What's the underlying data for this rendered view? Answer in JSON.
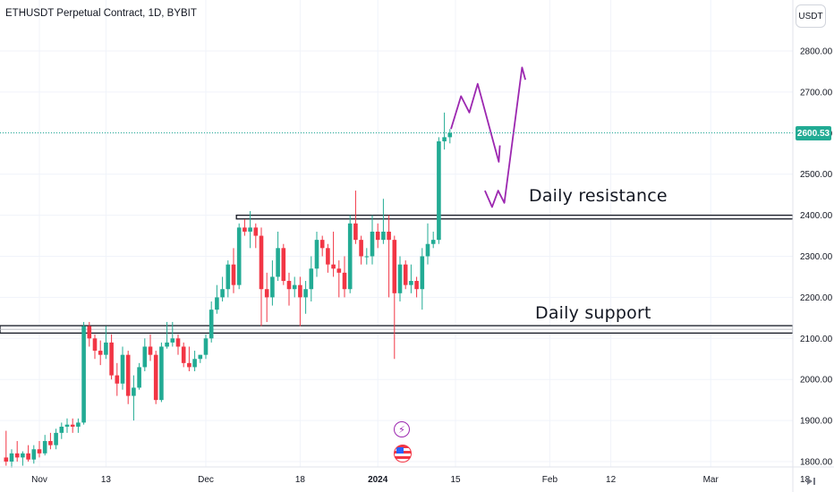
{
  "header": {
    "title": "ETHUSDT Perpetual Contract, 1D, BYBIT"
  },
  "price_scale": {
    "currency": "USDT",
    "last_price": "2600.53"
  },
  "colors": {
    "up": "#22ab94",
    "down": "#f23645",
    "drawing": "#9c27b0",
    "last_price_line": "#22ab94",
    "grid": "#f0f3fa"
  },
  "annotations": {
    "resistance_label": "Daily resistance",
    "support_label": "Daily support"
  },
  "events": [
    "lightning-icon",
    "us-flag-icon"
  ],
  "chart_data": {
    "type": "candlestick",
    "title": "ETHUSDT Perpetual Contract, 1D, BYBIT",
    "ylim": [
      1780,
      2870
    ],
    "y_ticks": [
      1800,
      1900,
      2000,
      2100,
      2200,
      2300,
      2400,
      2500,
      2600,
      2700,
      2800
    ],
    "y_tick_labels": [
      "1800.00",
      "1900.00",
      "2000.00",
      "2100.00",
      "2200.00",
      "2300.00",
      "2400.00",
      "2500.00",
      "2600.00",
      "2700.00",
      "2800.00"
    ],
    "x_tick_labels": [
      "Nov",
      "13",
      "Dec",
      "18",
      "2024",
      "15",
      "Feb",
      "12",
      "Mar",
      "18"
    ],
    "x_tick_days": [
      0,
      12,
      30,
      47,
      61,
      75,
      92,
      103,
      121,
      138
    ],
    "grid": true,
    "last_price": 2600.53,
    "start_date": "2023-11-01",
    "candles": [
      [
        -6,
        1810,
        1875,
        1790,
        1800
      ],
      [
        -5,
        1800,
        1830,
        1785,
        1820
      ],
      [
        -4,
        1820,
        1850,
        1800,
        1810
      ],
      [
        -3,
        1810,
        1825,
        1790,
        1820
      ],
      [
        -2,
        1820,
        1840,
        1800,
        1805
      ],
      [
        -1,
        1805,
        1840,
        1795,
        1830
      ],
      [
        0,
        1830,
        1850,
        1810,
        1820
      ],
      [
        1,
        1820,
        1865,
        1815,
        1850
      ],
      [
        2,
        1850,
        1870,
        1830,
        1840
      ],
      [
        3,
        1840,
        1880,
        1830,
        1870
      ],
      [
        4,
        1870,
        1895,
        1855,
        1885
      ],
      [
        5,
        1885,
        1905,
        1870,
        1890
      ],
      [
        6,
        1890,
        1905,
        1870,
        1885
      ],
      [
        7,
        1885,
        1905,
        1870,
        1895
      ],
      [
        8,
        1895,
        2140,
        1890,
        2130
      ],
      [
        9,
        2130,
        2140,
        2080,
        2100
      ],
      [
        10,
        2100,
        2110,
        2050,
        2070
      ],
      [
        11,
        2070,
        2095,
        2035,
        2060
      ],
      [
        12,
        2060,
        2130,
        2050,
        2090
      ],
      [
        13,
        2090,
        2110,
        2000,
        2010
      ],
      [
        14,
        2010,
        2040,
        1960,
        1990
      ],
      [
        15,
        1990,
        2080,
        1975,
        2060
      ],
      [
        16,
        2060,
        2070,
        1940,
        1960
      ],
      [
        17,
        1960,
        2010,
        1900,
        1980
      ],
      [
        18,
        1980,
        2040,
        1975,
        2030
      ],
      [
        19,
        2030,
        2100,
        2020,
        2080
      ],
      [
        20,
        2080,
        2110,
        2045,
        2060
      ],
      [
        21,
        2060,
        2070,
        1940,
        1950
      ],
      [
        22,
        1950,
        2090,
        1945,
        2080
      ],
      [
        23,
        2080,
        2140,
        2075,
        2090
      ],
      [
        24,
        2090,
        2140,
        2080,
        2100
      ],
      [
        25,
        2100,
        2110,
        2060,
        2080
      ],
      [
        26,
        2080,
        2090,
        2030,
        2040
      ],
      [
        27,
        2040,
        2080,
        2020,
        2030
      ],
      [
        28,
        2030,
        2070,
        2020,
        2050
      ],
      [
        29,
        2050,
        2060,
        2040,
        2060
      ],
      [
        30,
        2060,
        2110,
        2050,
        2100
      ],
      [
        31,
        2100,
        2190,
        2090,
        2170
      ],
      [
        32,
        2170,
        2230,
        2160,
        2200
      ],
      [
        33,
        2200,
        2250,
        2190,
        2220
      ],
      [
        34,
        2220,
        2290,
        2200,
        2280
      ],
      [
        35,
        2280,
        2320,
        2210,
        2230
      ],
      [
        36,
        2230,
        2380,
        2220,
        2370
      ],
      [
        37,
        2370,
        2390,
        2350,
        2360
      ],
      [
        38,
        2360,
        2410,
        2320,
        2370
      ],
      [
        39,
        2370,
        2380,
        2320,
        2350
      ],
      [
        40,
        2350,
        2370,
        2130,
        2220
      ],
      [
        41,
        2220,
        2260,
        2140,
        2200
      ],
      [
        42,
        2200,
        2290,
        2180,
        2250
      ],
      [
        43,
        2250,
        2360,
        2240,
        2320
      ],
      [
        44,
        2320,
        2330,
        2230,
        2240
      ],
      [
        45,
        2240,
        2260,
        2180,
        2220
      ],
      [
        46,
        2220,
        2250,
        2200,
        2230
      ],
      [
        47,
        2230,
        2250,
        2130,
        2200
      ],
      [
        48,
        2200,
        2240,
        2160,
        2220
      ],
      [
        49,
        2220,
        2300,
        2190,
        2270
      ],
      [
        50,
        2270,
        2360,
        2250,
        2340
      ],
      [
        51,
        2340,
        2350,
        2300,
        2320
      ],
      [
        52,
        2320,
        2330,
        2260,
        2280
      ],
      [
        53,
        2280,
        2360,
        2250,
        2270
      ],
      [
        54,
        2270,
        2290,
        2200,
        2260
      ],
      [
        55,
        2260,
        2300,
        2200,
        2220
      ],
      [
        56,
        2220,
        2400,
        2210,
        2380
      ],
      [
        57,
        2380,
        2460,
        2330,
        2340
      ],
      [
        58,
        2340,
        2350,
        2280,
        2300
      ],
      [
        59,
        2300,
        2320,
        2280,
        2300
      ],
      [
        60,
        2300,
        2400,
        2280,
        2360
      ],
      [
        61,
        2360,
        2380,
        2320,
        2340
      ],
      [
        62,
        2340,
        2440,
        2330,
        2360
      ],
      [
        63,
        2360,
        2400,
        2200,
        2340
      ],
      [
        64,
        2340,
        2350,
        2050,
        2210
      ],
      [
        65,
        2210,
        2300,
        2190,
        2280
      ],
      [
        66,
        2280,
        2290,
        2220,
        2230
      ],
      [
        67,
        2230,
        2280,
        2210,
        2240
      ],
      [
        68,
        2240,
        2250,
        2200,
        2220
      ],
      [
        69,
        2220,
        2320,
        2170,
        2300
      ],
      [
        70,
        2300,
        2380,
        2280,
        2330
      ],
      [
        71,
        2330,
        2360,
        2320,
        2340
      ],
      [
        72,
        2340,
        2590,
        2330,
        2580
      ],
      [
        73,
        2580,
        2650,
        2560,
        2590
      ],
      [
        74,
        2590,
        2610,
        2575,
        2600.53
      ]
    ],
    "resistance_zone": [
      2391,
      2400
    ],
    "support_zone": [
      2113,
      2131
    ],
    "projection_path": [
      [
        74.2,
        2610
      ],
      [
        76,
        2690
      ],
      [
        77.5,
        2650
      ],
      [
        79,
        2720
      ],
      [
        82,
        2570
      ],
      [
        82.8,
        2530
      ],
      [
        83,
        2570
      ]
    ],
    "projection_path_2": [
      [
        80.3,
        2460
      ],
      [
        81.6,
        2420
      ],
      [
        82.7,
        2460
      ],
      [
        83.8,
        2430
      ],
      [
        87,
        2760
      ],
      [
        87.6,
        2730
      ]
    ]
  }
}
